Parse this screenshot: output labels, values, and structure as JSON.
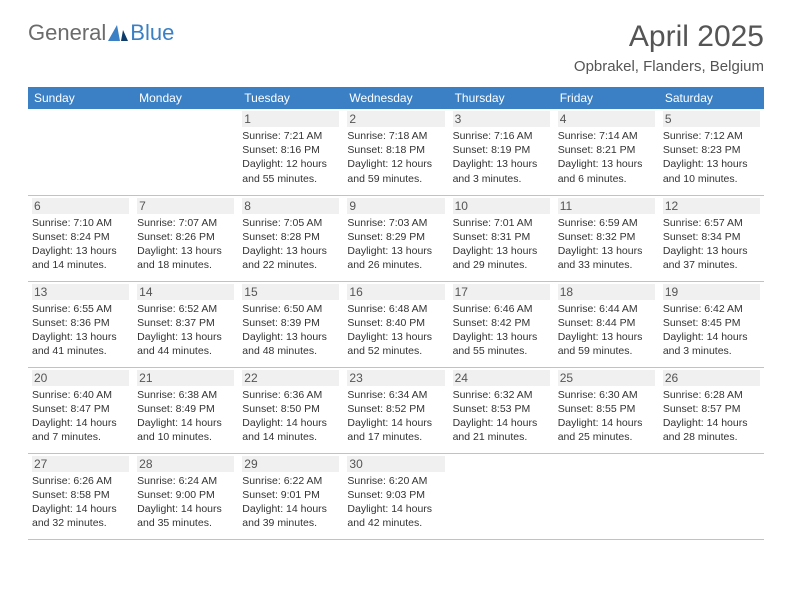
{
  "logo": {
    "text1": "General",
    "text2": "Blue"
  },
  "header": {
    "title": "April 2025",
    "location": "Opbrakel, Flanders, Belgium"
  },
  "colors": {
    "header_bg": "#3b7fc4",
    "header_fg": "#ffffff",
    "daynum_bg": "#f0f0f0",
    "grid_line": "#b9c4d0",
    "page_bg": "#ffffff",
    "body_text": "#333333"
  },
  "calendar": {
    "type": "table",
    "columns": [
      "Sunday",
      "Monday",
      "Tuesday",
      "Wednesday",
      "Thursday",
      "Friday",
      "Saturday"
    ],
    "col_fontsize": 12,
    "body_fontsize": 10.5,
    "weeks": [
      [
        null,
        null,
        {
          "n": "1",
          "sunrise": "7:21 AM",
          "sunset": "8:16 PM",
          "daylight": "12 hours and 55 minutes."
        },
        {
          "n": "2",
          "sunrise": "7:18 AM",
          "sunset": "8:18 PM",
          "daylight": "12 hours and 59 minutes."
        },
        {
          "n": "3",
          "sunrise": "7:16 AM",
          "sunset": "8:19 PM",
          "daylight": "13 hours and 3 minutes."
        },
        {
          "n": "4",
          "sunrise": "7:14 AM",
          "sunset": "8:21 PM",
          "daylight": "13 hours and 6 minutes."
        },
        {
          "n": "5",
          "sunrise": "7:12 AM",
          "sunset": "8:23 PM",
          "daylight": "13 hours and 10 minutes."
        }
      ],
      [
        {
          "n": "6",
          "sunrise": "7:10 AM",
          "sunset": "8:24 PM",
          "daylight": "13 hours and 14 minutes."
        },
        {
          "n": "7",
          "sunrise": "7:07 AM",
          "sunset": "8:26 PM",
          "daylight": "13 hours and 18 minutes."
        },
        {
          "n": "8",
          "sunrise": "7:05 AM",
          "sunset": "8:28 PM",
          "daylight": "13 hours and 22 minutes."
        },
        {
          "n": "9",
          "sunrise": "7:03 AM",
          "sunset": "8:29 PM",
          "daylight": "13 hours and 26 minutes."
        },
        {
          "n": "10",
          "sunrise": "7:01 AM",
          "sunset": "8:31 PM",
          "daylight": "13 hours and 29 minutes."
        },
        {
          "n": "11",
          "sunrise": "6:59 AM",
          "sunset": "8:32 PM",
          "daylight": "13 hours and 33 minutes."
        },
        {
          "n": "12",
          "sunrise": "6:57 AM",
          "sunset": "8:34 PM",
          "daylight": "13 hours and 37 minutes."
        }
      ],
      [
        {
          "n": "13",
          "sunrise": "6:55 AM",
          "sunset": "8:36 PM",
          "daylight": "13 hours and 41 minutes."
        },
        {
          "n": "14",
          "sunrise": "6:52 AM",
          "sunset": "8:37 PM",
          "daylight": "13 hours and 44 minutes."
        },
        {
          "n": "15",
          "sunrise": "6:50 AM",
          "sunset": "8:39 PM",
          "daylight": "13 hours and 48 minutes."
        },
        {
          "n": "16",
          "sunrise": "6:48 AM",
          "sunset": "8:40 PM",
          "daylight": "13 hours and 52 minutes."
        },
        {
          "n": "17",
          "sunrise": "6:46 AM",
          "sunset": "8:42 PM",
          "daylight": "13 hours and 55 minutes."
        },
        {
          "n": "18",
          "sunrise": "6:44 AM",
          "sunset": "8:44 PM",
          "daylight": "13 hours and 59 minutes."
        },
        {
          "n": "19",
          "sunrise": "6:42 AM",
          "sunset": "8:45 PM",
          "daylight": "14 hours and 3 minutes."
        }
      ],
      [
        {
          "n": "20",
          "sunrise": "6:40 AM",
          "sunset": "8:47 PM",
          "daylight": "14 hours and 7 minutes."
        },
        {
          "n": "21",
          "sunrise": "6:38 AM",
          "sunset": "8:49 PM",
          "daylight": "14 hours and 10 minutes."
        },
        {
          "n": "22",
          "sunrise": "6:36 AM",
          "sunset": "8:50 PM",
          "daylight": "14 hours and 14 minutes."
        },
        {
          "n": "23",
          "sunrise": "6:34 AM",
          "sunset": "8:52 PM",
          "daylight": "14 hours and 17 minutes."
        },
        {
          "n": "24",
          "sunrise": "6:32 AM",
          "sunset": "8:53 PM",
          "daylight": "14 hours and 21 minutes."
        },
        {
          "n": "25",
          "sunrise": "6:30 AM",
          "sunset": "8:55 PM",
          "daylight": "14 hours and 25 minutes."
        },
        {
          "n": "26",
          "sunrise": "6:28 AM",
          "sunset": "8:57 PM",
          "daylight": "14 hours and 28 minutes."
        }
      ],
      [
        {
          "n": "27",
          "sunrise": "6:26 AM",
          "sunset": "8:58 PM",
          "daylight": "14 hours and 32 minutes."
        },
        {
          "n": "28",
          "sunrise": "6:24 AM",
          "sunset": "9:00 PM",
          "daylight": "14 hours and 35 minutes."
        },
        {
          "n": "29",
          "sunrise": "6:22 AM",
          "sunset": "9:01 PM",
          "daylight": "14 hours and 39 minutes."
        },
        {
          "n": "30",
          "sunrise": "6:20 AM",
          "sunset": "9:03 PM",
          "daylight": "14 hours and 42 minutes."
        },
        null,
        null,
        null
      ]
    ],
    "labels": {
      "sunrise": "Sunrise:",
      "sunset": "Sunset:",
      "daylight": "Daylight:"
    }
  }
}
